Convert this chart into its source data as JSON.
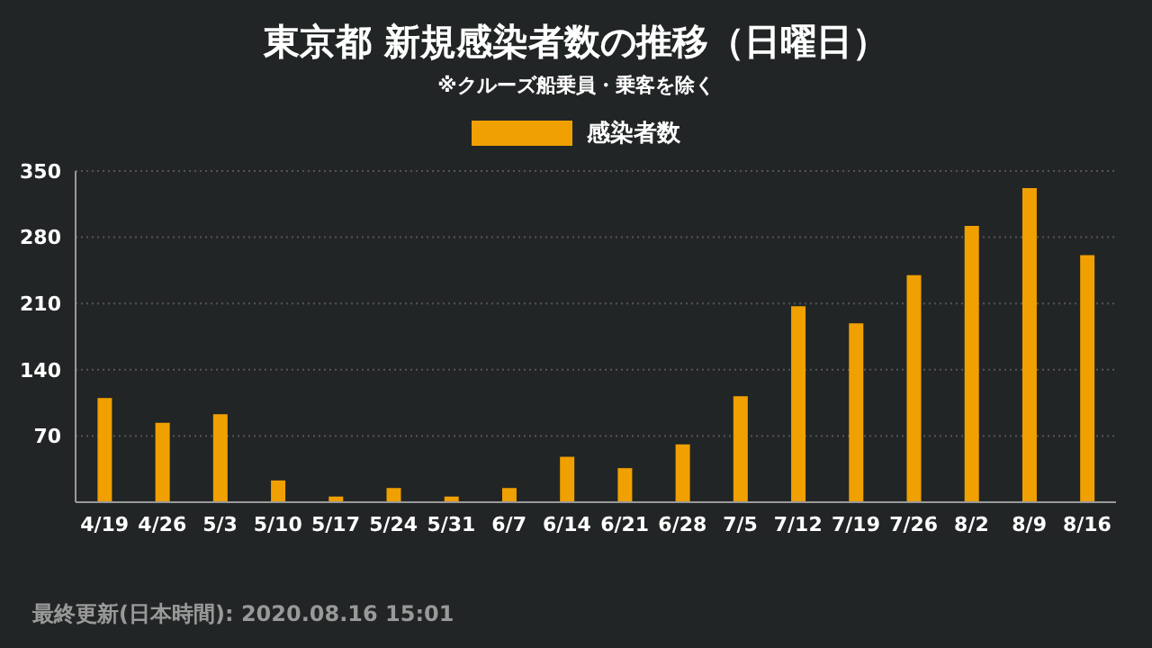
{
  "chart_data": {
    "type": "bar",
    "title": "東京都  新規感染者数の推移（日曜日）",
    "subtitle": "※クルーズ船乗員・乗客を除く",
    "categories": [
      "4/19",
      "4/26",
      "5/3",
      "5/10",
      "5/17",
      "5/24",
      "5/31",
      "6/7",
      "6/14",
      "6/21",
      "6/28",
      "7/5",
      "7/12",
      "7/19",
      "7/26",
      "8/2",
      "8/9",
      "8/16"
    ],
    "series": [
      {
        "name": "感染者数",
        "color": "#f0a000",
        "values": [
          110,
          84,
          93,
          23,
          6,
          15,
          6,
          15,
          48,
          36,
          61,
          112,
          207,
          189,
          240,
          292,
          332,
          261
        ]
      }
    ],
    "ylim": [
      0,
      350
    ],
    "yticks": [
      70,
      140,
      210,
      280,
      350
    ],
    "grid": "y",
    "legend": "top",
    "annotations": [
      "最終更新(日本時間): 2020.08.16 15:01"
    ]
  }
}
